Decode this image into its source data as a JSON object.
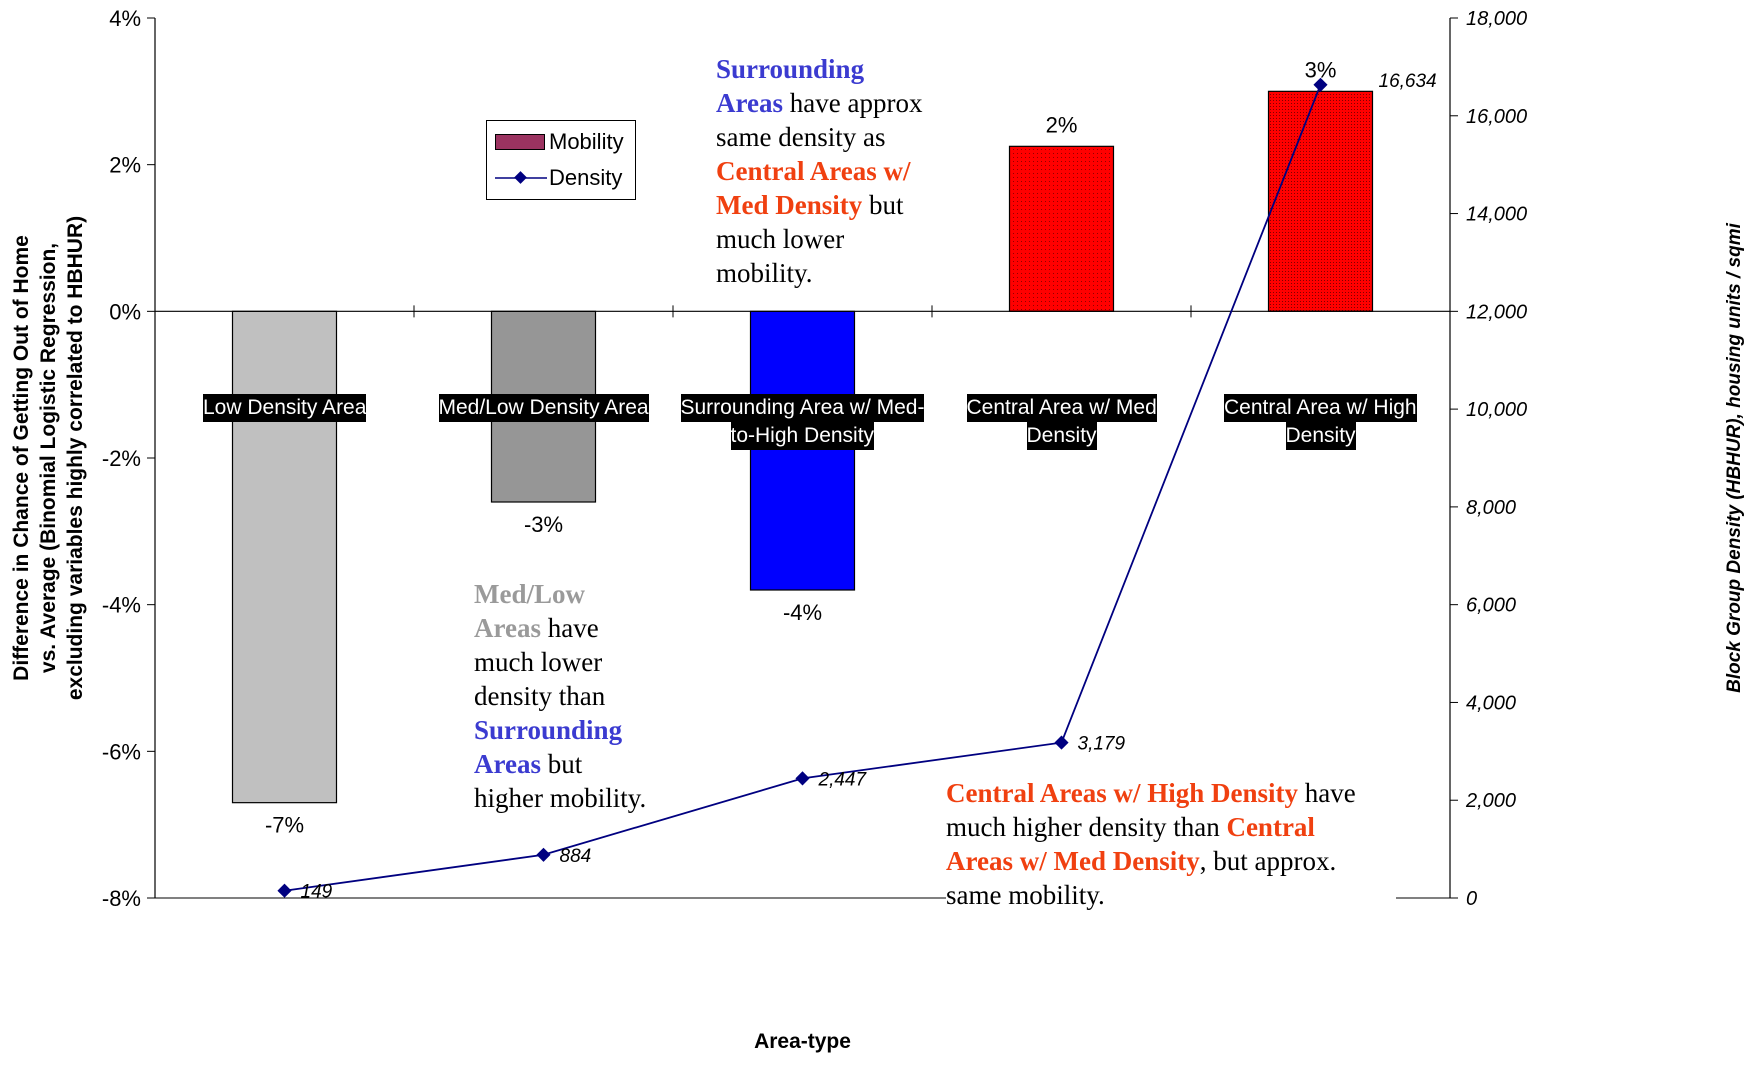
{
  "chart_data": {
    "type": "bar",
    "categories": [
      "Low Density Area",
      "Med/Low Density Area",
      "Surrounding Area w/ Med-to-High Density",
      "Central Area w/ Med Density",
      "Central Area w/ High Density"
    ],
    "series": [
      {
        "name": "Mobility",
        "type": "bar",
        "axis": "left",
        "values": [
          -6.7,
          -2.6,
          -3.8,
          2.25,
          3.0
        ],
        "labels": [
          "-7%",
          "-3%",
          "-4%",
          "2%",
          "3%"
        ]
      },
      {
        "name": "Density",
        "type": "line",
        "axis": "right",
        "values": [
          149,
          884,
          2447,
          3179,
          16634
        ],
        "labels": [
          "149",
          "884",
          "2,447",
          "3,179",
          "16,634"
        ]
      }
    ],
    "xlabel": "Area-type",
    "ylabel": "Difference in Chance of Getting Out of Home vs. Average (Binomial Logistic Regression, excluding variables highly correlated to HBHUR)",
    "ylabel_lines": [
      "Difference in Chance of Getting Out of Home",
      "vs. Average (Binomial Logistic Regression,",
      "excluding variables highly correlated to HBHUR)"
    ],
    "y2label": "Block Group Density (HBHUR), housing units / sqmi",
    "ylim": [
      -8,
      4
    ],
    "y2lim": [
      0,
      18000
    ],
    "yticks": [
      -8,
      -6,
      -4,
      -2,
      0,
      2,
      4
    ],
    "yticklabels": [
      "-8%",
      "-6%",
      "-4%",
      "-2%",
      "0%",
      "2%",
      "4%"
    ],
    "y2ticks": [
      0,
      2000,
      4000,
      6000,
      8000,
      10000,
      12000,
      14000,
      16000,
      18000
    ],
    "y2ticklabels": [
      "0",
      "2,000",
      "4,000",
      "6,000",
      "8,000",
      "10,000",
      "12,000",
      "14,000",
      "16,000",
      "18,000"
    ],
    "legend": {
      "placement": "top-left",
      "entries": [
        "Mobility",
        "Density"
      ]
    },
    "grid": false,
    "colors": {
      "bars": [
        "#c0c0c0",
        "#969696",
        "#0000ff",
        "#ff0000",
        "#ff0000"
      ],
      "line": "#000080"
    },
    "category_labels": [
      [
        "Low Density Area"
      ],
      [
        "Med/Low Density Area"
      ],
      [
        "Surrounding Area w/ Med-",
        "to-High Density"
      ],
      [
        "Central Area w/ Med",
        "Density"
      ],
      [
        "Central Area w/ High",
        "Density"
      ]
    ]
  },
  "annotations": {
    "surrounding": {
      "b1": "Surrounding",
      "b2": "Areas",
      "t1": " have approx",
      "t2": "same density as",
      "r1": "Central Areas w/",
      "r2": "Med Density",
      "t3": " but",
      "t4": "much lower",
      "t5": "mobility."
    },
    "medlow": {
      "g1": "Med/Low",
      "g2": "Areas",
      "t1": " have",
      "t2": "much lower",
      "t3": "density than",
      "b1": "Surrounding",
      "b2": "Areas",
      "t4": " but",
      "t5": "higher mobility."
    },
    "central": {
      "r1": "Central Areas w/ High Density",
      "t1": " have",
      "t2": "much higher density than ",
      "r2": "Central",
      "r3": "Areas w/ Med Density",
      "t3": ", but approx.",
      "t4": "same mobility."
    }
  }
}
